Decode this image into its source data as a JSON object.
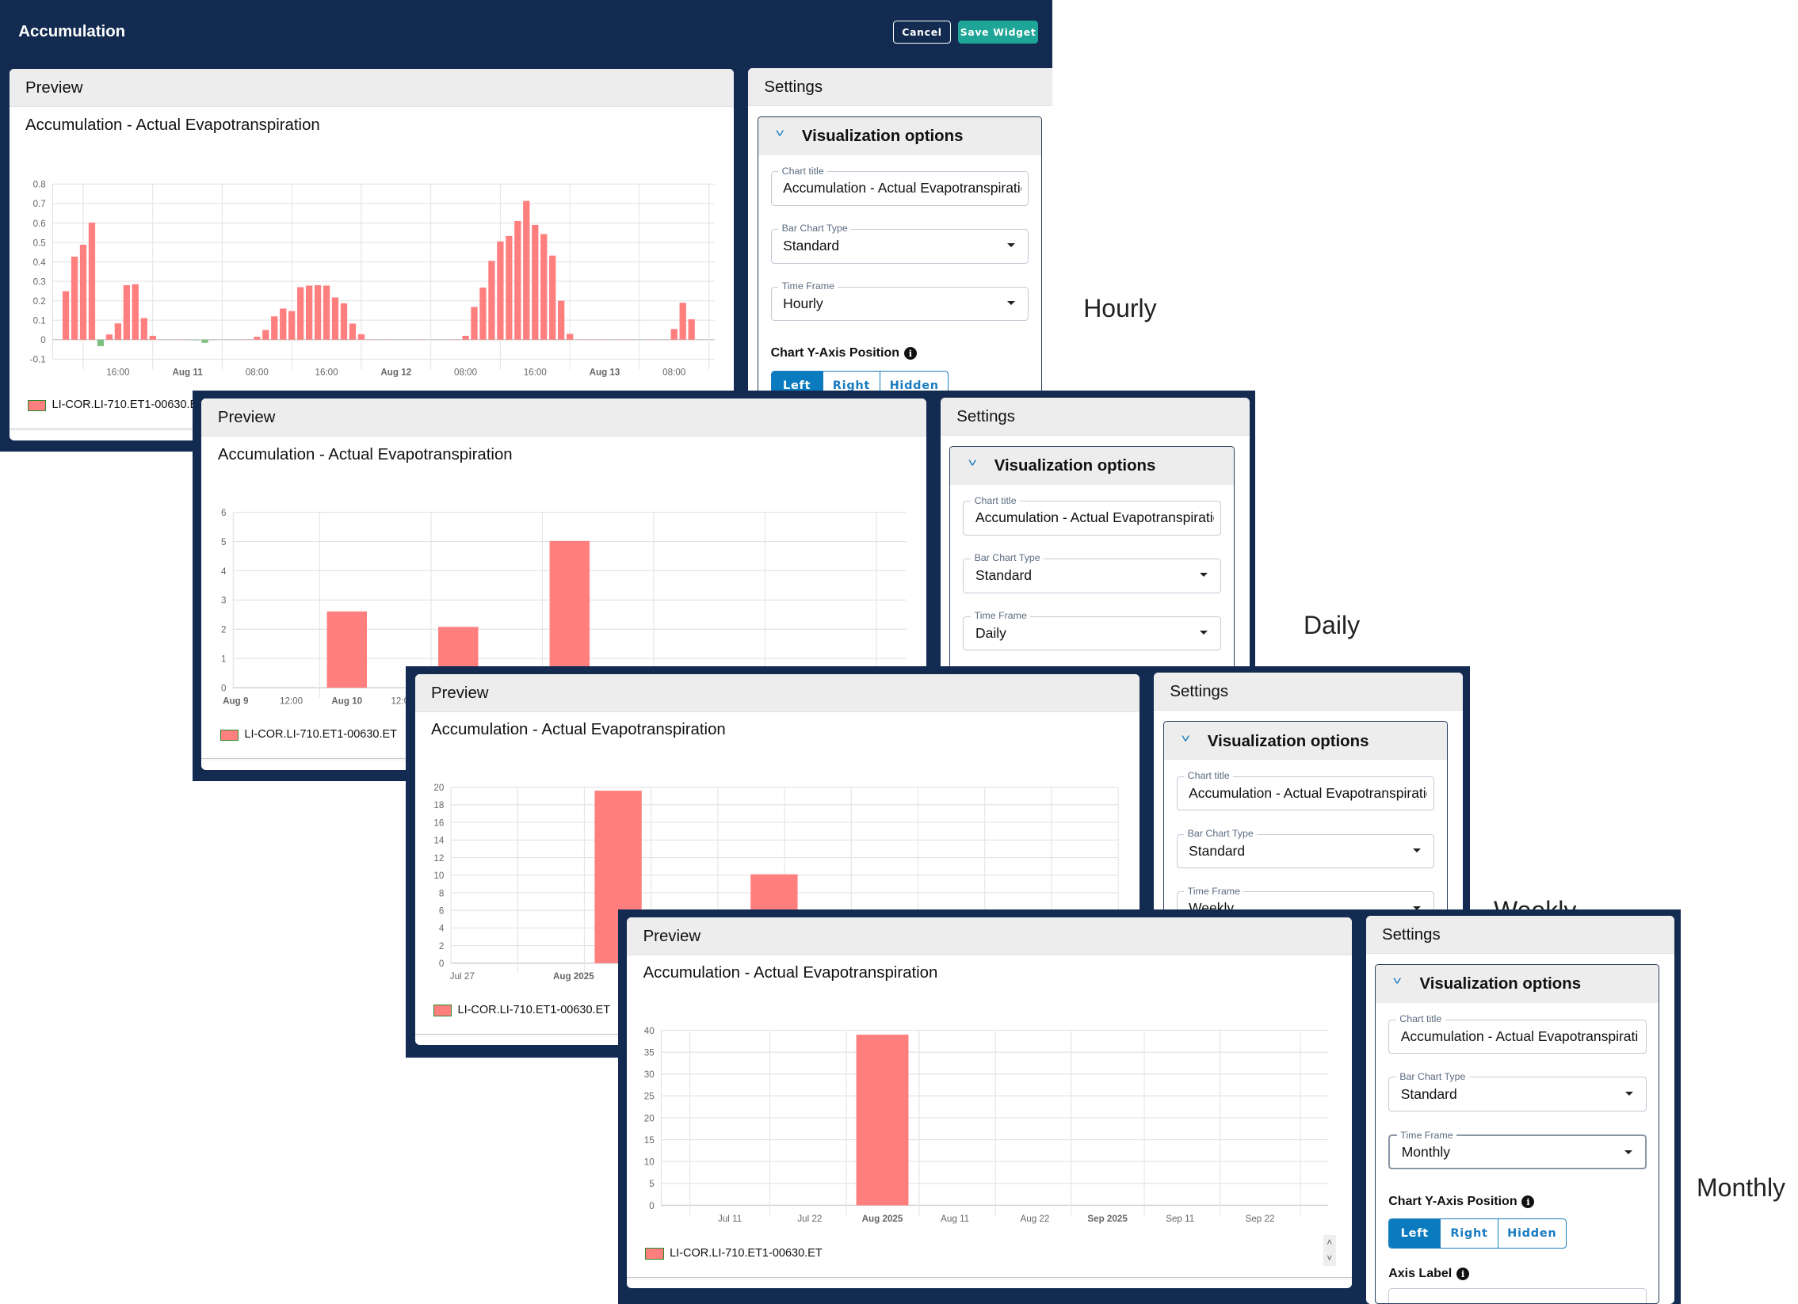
{
  "header": {
    "title": "Accumulation",
    "cancel_label": "Cancel",
    "save_label": "Save Widget"
  },
  "preview": {
    "header": "Preview",
    "chart_title": "Accumulation - Actual Evapotranspiration",
    "legend_label": "LI-COR.LI-710.ET1-00630.ET"
  },
  "settings": {
    "header": "Settings",
    "section_title": "Visualization options",
    "chart_title_label": "Chart title",
    "chart_title_value": "Accumulation - Actual Evapotranspiration",
    "bar_type_label": "Bar Chart Type",
    "bar_type_value": "Standard",
    "time_frame_label": "Time Frame",
    "y_axis_position_label": "Chart Y-Axis Position",
    "y_axis_options": [
      "Left",
      "Right",
      "Hidden"
    ],
    "y_axis_selected": "Left",
    "axis_label_label": "Axis Label",
    "axis_label_value": "",
    "info_icon": "i"
  },
  "shots": [
    {
      "caption": "Hourly",
      "time_frame": "Hourly"
    },
    {
      "caption": "Daily",
      "time_frame": "Daily"
    },
    {
      "caption": "Weekly",
      "time_frame": "Weekly"
    },
    {
      "caption": "Monthly",
      "time_frame": "Monthly"
    }
  ],
  "colors": {
    "navy": "#132b50",
    "save": "#1fa597",
    "selected": "#0b7bbf",
    "bar": "#ff7f7f",
    "negative_bar": "#7fbf7f",
    "legend_border": "#2b8a2b"
  },
  "chart_data": [
    {
      "type": "bar",
      "series_name": "LI-COR.LI-710.ET1-00630.ET",
      "x": [
        "Aug 10 10:00",
        "Aug 10 11:00",
        "Aug 10 12:00",
        "Aug 10 13:00",
        "Aug 10 14:00",
        "Aug 10 15:00",
        "Aug 10 16:00",
        "Aug 10 17:00",
        "Aug 10 18:00",
        "Aug 10 19:00",
        "Aug 10 20:00",
        "Aug 10 21:00",
        "Aug 10 22:00",
        "Aug 10 23:00",
        "Aug 11 00:00",
        "Aug 11 01:00",
        "Aug 11 02:00",
        "Aug 11 03:00",
        "Aug 11 04:00",
        "Aug 11 05:00",
        "Aug 11 06:00",
        "Aug 11 07:00",
        "Aug 11 08:00",
        "Aug 11 09:00",
        "Aug 11 10:00",
        "Aug 11 11:00",
        "Aug 11 12:00",
        "Aug 11 13:00",
        "Aug 11 14:00",
        "Aug 11 15:00",
        "Aug 11 16:00",
        "Aug 11 17:00",
        "Aug 11 18:00",
        "Aug 11 19:00",
        "Aug 11 20:00",
        "Aug 11 21:00",
        "Aug 11 22:00",
        "Aug 11 23:00",
        "Aug 12 00:00",
        "Aug 12 01:00",
        "Aug 12 02:00",
        "Aug 12 03:00",
        "Aug 12 04:00",
        "Aug 12 05:00",
        "Aug 12 06:00",
        "Aug 12 07:00",
        "Aug 12 08:00",
        "Aug 12 09:00",
        "Aug 12 10:00",
        "Aug 12 11:00",
        "Aug 12 12:00",
        "Aug 12 13:00",
        "Aug 12 14:00",
        "Aug 12 15:00",
        "Aug 12 16:00",
        "Aug 12 17:00",
        "Aug 12 18:00",
        "Aug 12 19:00",
        "Aug 12 20:00",
        "Aug 12 21:00",
        "Aug 12 22:00",
        "Aug 12 23:00",
        "Aug 13 00:00",
        "Aug 13 01:00",
        "Aug 13 02:00",
        "Aug 13 03:00",
        "Aug 13 04:00",
        "Aug 13 05:00",
        "Aug 13 06:00",
        "Aug 13 07:00",
        "Aug 13 08:00",
        "Aug 13 09:00",
        "Aug 13 10:00"
      ],
      "values": [
        0.249,
        0.427,
        0.488,
        0.602,
        -0.033,
        0.027,
        0.084,
        0.28,
        0.285,
        0.111,
        0.02,
        0,
        -0.003,
        0.001,
        -0.004,
        -0.005,
        -0.016,
        -0.003,
        -0.002,
        0,
        0,
        0.002,
        0.015,
        0.05,
        0.12,
        0.16,
        0.147,
        0.27,
        0.278,
        0.28,
        0.278,
        0.217,
        0.187,
        0.083,
        0.028,
        0.001,
        0,
        0.001,
        -0.002,
        -0.002,
        -0.002,
        0.001,
        -0.002,
        0,
        0,
        0.001,
        0.02,
        0.168,
        0.268,
        0.405,
        0.505,
        0.533,
        0.61,
        0.713,
        0.59,
        0.543,
        0.432,
        0.2,
        0.03,
        0.002,
        0,
        0.001,
        0,
        -0.002,
        0.001,
        0.001,
        -0.002,
        0.001,
        0,
        0,
        0.055,
        0.19,
        0.105
      ],
      "ylim": [
        -0.1,
        0.8
      ],
      "yticks": [
        "-0.1",
        "0",
        "0.1",
        "0.2",
        "0.3",
        "0.4",
        "0.5",
        "0.6",
        "0.7",
        "0.8"
      ],
      "xticks": [
        {
          "label": "16:00"
        },
        {
          "label": "Aug 11",
          "bold": true
        },
        {
          "label": "08:00"
        },
        {
          "label": "16:00"
        },
        {
          "label": "Aug 12",
          "bold": true
        },
        {
          "label": "08:00"
        },
        {
          "label": "16:00"
        },
        {
          "label": "Aug 13",
          "bold": true
        },
        {
          "label": "08:00"
        }
      ],
      "grid": true,
      "legend": "bottom-left"
    },
    {
      "type": "bar",
      "series_name": "LI-COR.LI-710.ET1-00630.ET",
      "x": [
        "Aug 10",
        "Aug 11",
        "Aug 12"
      ],
      "values": [
        2.61,
        2.08,
        5.02
      ],
      "ylim": [
        0,
        6
      ],
      "yticks": [
        "0",
        "1",
        "2",
        "3",
        "4",
        "5",
        "6"
      ],
      "xticks": [
        {
          "label": "Aug 9",
          "bold": true
        },
        {
          "label": "12:00"
        },
        {
          "label": "Aug 10",
          "bold": true
        },
        {
          "label": "12:00"
        }
      ],
      "grid": true,
      "legend": "bottom-left"
    },
    {
      "type": "bar",
      "series_name": "LI-COR.LI-710.ET1-00630.ET",
      "x": [
        "2025-08-03",
        "2025-08-10"
      ],
      "values": [
        19.6,
        10.1
      ],
      "ylim": [
        0,
        20
      ],
      "yticks": [
        "0",
        "2",
        "4",
        "6",
        "8",
        "10",
        "12",
        "14",
        "16",
        "18",
        "20"
      ],
      "xticks": [
        {
          "label": "Jul 27"
        },
        {
          "label": "Aug 2025",
          "bold": true
        }
      ],
      "grid": true,
      "legend": "bottom-left"
    },
    {
      "type": "bar",
      "series_name": "LI-COR.LI-710.ET1-00630.ET",
      "x": [
        "Aug 2025"
      ],
      "values": [
        39.0
      ],
      "ylim": [
        0,
        40
      ],
      "yticks": [
        "0",
        "5",
        "10",
        "15",
        "20",
        "25",
        "30",
        "35",
        "40"
      ],
      "xticks": [
        {
          "label": "Jul 11"
        },
        {
          "label": "Jul 22"
        },
        {
          "label": "Aug 2025",
          "bold": true
        },
        {
          "label": "Aug 11"
        },
        {
          "label": "Aug 22"
        },
        {
          "label": "Sep 2025",
          "bold": true
        },
        {
          "label": "Sep 11"
        },
        {
          "label": "Sep 22"
        }
      ],
      "grid": true,
      "legend": "bottom-left"
    }
  ]
}
